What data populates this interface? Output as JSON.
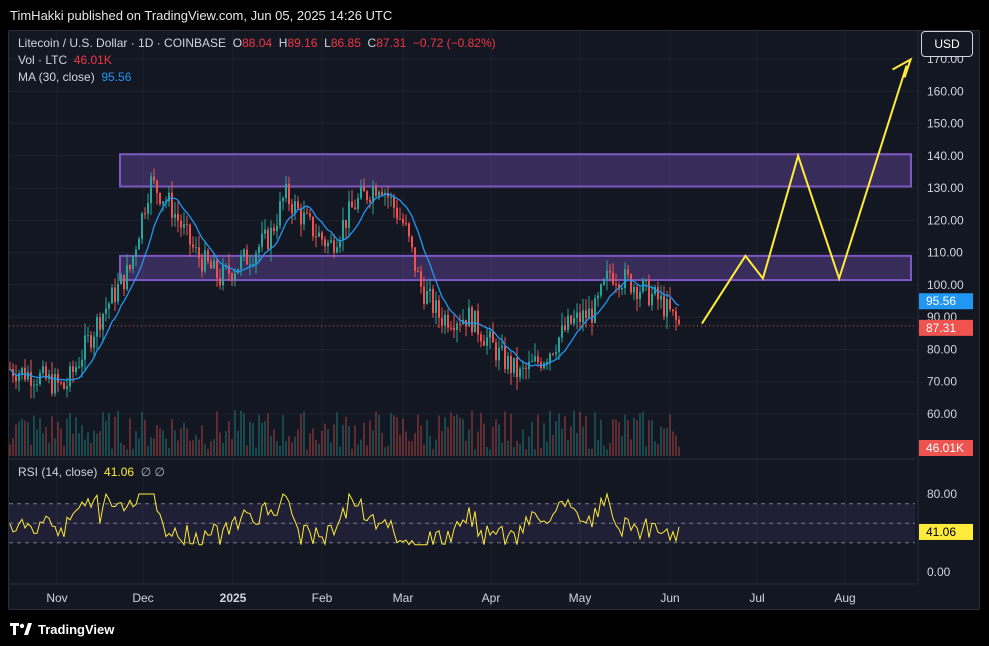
{
  "header": {
    "publish_text": "TimHakki published on TradingView.com, Jun 05, 2025 14:26 UTC"
  },
  "legend": {
    "symbol": "Litecoin / U.S. Dollar · 1D · COINBASE",
    "o_label": "O",
    "o_value": "88.04",
    "h_label": "H",
    "h_value": "89.16",
    "l_label": "L",
    "l_value": "86.85",
    "c_label": "C",
    "c_value": "87.31",
    "change": "−0.72 (−0.82%)",
    "vol_label": "Vol · LTC",
    "vol_value": "46.01K",
    "ma_label": "MA (30, close)",
    "ma_value": "95.56",
    "rsi_label": "RSI (14, close)",
    "rsi_value": "41.06",
    "rsi_extra": "∅ ∅"
  },
  "currency_button": "USD",
  "price_axis": {
    "ticks": [
      "170.00",
      "160.00",
      "150.00",
      "140.00",
      "130.00",
      "120.00",
      "110.00",
      "100.00",
      "90.00",
      "80.00",
      "70.00",
      "60.00"
    ],
    "ma_tag": "95.56",
    "price_tag": "87.31",
    "vol_tag": "46.01K"
  },
  "rsi_axis": {
    "ticks": [
      "80.00",
      "0.00"
    ],
    "rsi_tag": "41.06"
  },
  "time_axis": {
    "labels": [
      "Nov",
      "Dec",
      "2025",
      "Feb",
      "Mar",
      "Apr",
      "May",
      "Jun",
      "Jul",
      "Aug"
    ]
  },
  "colors": {
    "up": "#26a69a",
    "down": "#ef5350",
    "ma": "#2196f3",
    "rsi": "#ffeb3b",
    "projection": "#ffeb3b",
    "zone": "#7e57c2",
    "background": "#131722"
  },
  "zones": [
    {
      "name": "resistance-zone",
      "from": 130.5,
      "to": 140.5
    },
    {
      "name": "support-zone",
      "from": 101.5,
      "to": 109.0
    }
  ],
  "projection_path": [
    {
      "date": "Jun 12",
      "price": 88
    },
    {
      "date": "Jun 27",
      "price": 109
    },
    {
      "date": "Jul 03",
      "price": 102
    },
    {
      "date": "Jul 15",
      "price": 140
    },
    {
      "date": "Jul 29",
      "price": 102
    },
    {
      "date": "Aug 22",
      "price": 168
    }
  ],
  "footer": {
    "brand": "TradingView"
  }
}
